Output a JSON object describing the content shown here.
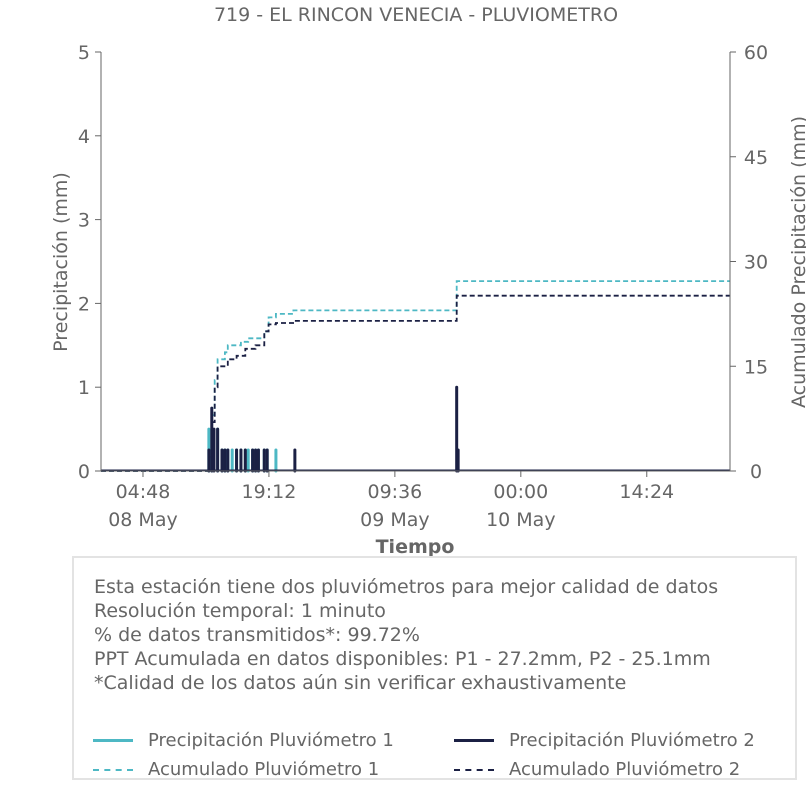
{
  "colors": {
    "p1": "#4db8c4",
    "p2": "#1b2044",
    "axis": "#666666",
    "text": "#666666"
  },
  "info": {
    "lines": [
      "Esta estación tiene dos pluviómetros para mejor calidad de datos",
      "Resolución temporal: 1 minuto",
      "% de datos transmitidos*: 99.72%",
      "PPT Acumulada en datos disponibles: P1 - 27.2mm, P2 - 25.1mm",
      "*Calidad de los datos aún sin verificar exhaustivamente"
    ]
  },
  "legend": {
    "items": [
      {
        "label": "Precipitación Pluviómetro 1",
        "color": "#4db8c4",
        "style": "solid"
      },
      {
        "label": "Precipitación Pluviómetro 2",
        "color": "#1b2044",
        "style": "solid"
      },
      {
        "label": "Acumulado Pluviómetro 1",
        "color": "#4db8c4",
        "style": "dashed"
      },
      {
        "label": "Acumulado Pluviómetro 2",
        "color": "#1b2044",
        "style": "dashed"
      }
    ]
  },
  "chart_data": {
    "type": "line",
    "title": "719 - EL RINCON VENECIA - PLUVIOMETRO",
    "xlabel": "Tiempo",
    "ylabel": "Precipitación (mm)",
    "y2label": "Acumulado Precipitación (mm)",
    "xlim": [
      "2024-05-08 00:00",
      "2024-05-10 23:55"
    ],
    "ylim": [
      0,
      5
    ],
    "y2lim": [
      0,
      60
    ],
    "yticks": [
      0,
      1,
      2,
      3,
      4,
      5
    ],
    "y2ticks": [
      0,
      15,
      30,
      45,
      60
    ],
    "xticks": [
      {
        "x": "2024-05-08 04:48",
        "label": "04:48",
        "date_label": "08 May"
      },
      {
        "x": "2024-05-08 19:12",
        "label": "19:12",
        "date_label": ""
      },
      {
        "x": "2024-05-09 09:36",
        "label": "09:36",
        "date_label": "09 May"
      },
      {
        "x": "2024-05-10 00:00",
        "label": "00:00",
        "date_label": "10 May"
      },
      {
        "x": "2024-05-10 14:24",
        "label": "14:24",
        "date_label": ""
      }
    ],
    "grid": false,
    "legend_position": "bottom",
    "series": [
      {
        "name": "Precipitación Pluviómetro 1",
        "axis": "left",
        "style": "bars",
        "x": [
          "2024-05-08 12:20",
          "2024-05-08 12:40",
          "2024-05-08 13:20",
          "2024-05-08 13:50",
          "2024-05-08 14:10",
          "2024-05-08 14:30",
          "2024-05-08 15:00",
          "2024-05-08 15:30",
          "2024-05-08 16:00",
          "2024-05-08 16:30",
          "2024-05-08 16:50",
          "2024-05-08 17:20",
          "2024-05-08 17:40",
          "2024-05-08 18:00",
          "2024-05-08 18:40",
          "2024-05-08 19:00",
          "2024-05-08 20:00"
        ],
        "values": [
          0.5,
          0.25,
          0.5,
          0.25,
          0.25,
          0.25,
          0.25,
          0.25,
          0.25,
          0.25,
          0.25,
          0.25,
          0.25,
          0.25,
          0.25,
          0.25,
          0.25
        ]
      },
      {
        "name": "Precipitación Pluviómetro 2",
        "axis": "left",
        "style": "bars",
        "x": [
          "2024-05-08 12:20",
          "2024-05-08 12:40",
          "2024-05-08 12:55",
          "2024-05-08 13:20",
          "2024-05-08 13:50",
          "2024-05-08 14:10",
          "2024-05-08 14:30",
          "2024-05-08 15:30",
          "2024-05-08 16:00",
          "2024-05-08 16:30",
          "2024-05-08 17:20",
          "2024-05-08 17:40",
          "2024-05-08 18:00",
          "2024-05-08 18:40",
          "2024-05-08 19:00",
          "2024-05-08 22:10",
          "2024-05-09 16:40",
          "2024-05-09 16:50"
        ],
        "values": [
          0.25,
          0.75,
          0.5,
          0.5,
          0.25,
          0.25,
          0.25,
          0.25,
          0.25,
          0.25,
          0.25,
          0.25,
          0.25,
          0.25,
          0.25,
          0.25,
          1.0,
          0.25
        ]
      },
      {
        "name": "Acumulado Pluviómetro 1",
        "axis": "right",
        "style": "dashed-step",
        "x": [
          "2024-05-08 00:00",
          "2024-05-08 12:20",
          "2024-05-08 12:40",
          "2024-05-08 13:00",
          "2024-05-08 13:20",
          "2024-05-08 14:10",
          "2024-05-08 14:30",
          "2024-05-08 16:00",
          "2024-05-08 16:50",
          "2024-05-08 18:40",
          "2024-05-08 19:10",
          "2024-05-08 20:00",
          "2024-05-08 22:00",
          "2024-05-09 16:40",
          "2024-05-10 23:55"
        ],
        "values": [
          0,
          2,
          8,
          13,
          16,
          17,
          18,
          18.5,
          19,
          20,
          22,
          22.5,
          23,
          27.2,
          27.2
        ]
      },
      {
        "name": "Acumulado Pluviómetro 2",
        "axis": "right",
        "style": "dashed-step",
        "x": [
          "2024-05-08 00:00",
          "2024-05-08 12:20",
          "2024-05-08 12:40",
          "2024-05-08 13:00",
          "2024-05-08 13:20",
          "2024-05-08 14:30",
          "2024-05-08 15:30",
          "2024-05-08 16:30",
          "2024-05-08 17:40",
          "2024-05-08 18:40",
          "2024-05-08 19:10",
          "2024-05-08 20:00",
          "2024-05-08 22:10",
          "2024-05-09 16:40",
          "2024-05-10 23:55"
        ],
        "values": [
          0,
          2,
          7,
          12,
          15,
          16,
          16.5,
          17.5,
          18,
          20,
          21,
          21.2,
          21.5,
          25.1,
          25.1
        ]
      }
    ]
  }
}
